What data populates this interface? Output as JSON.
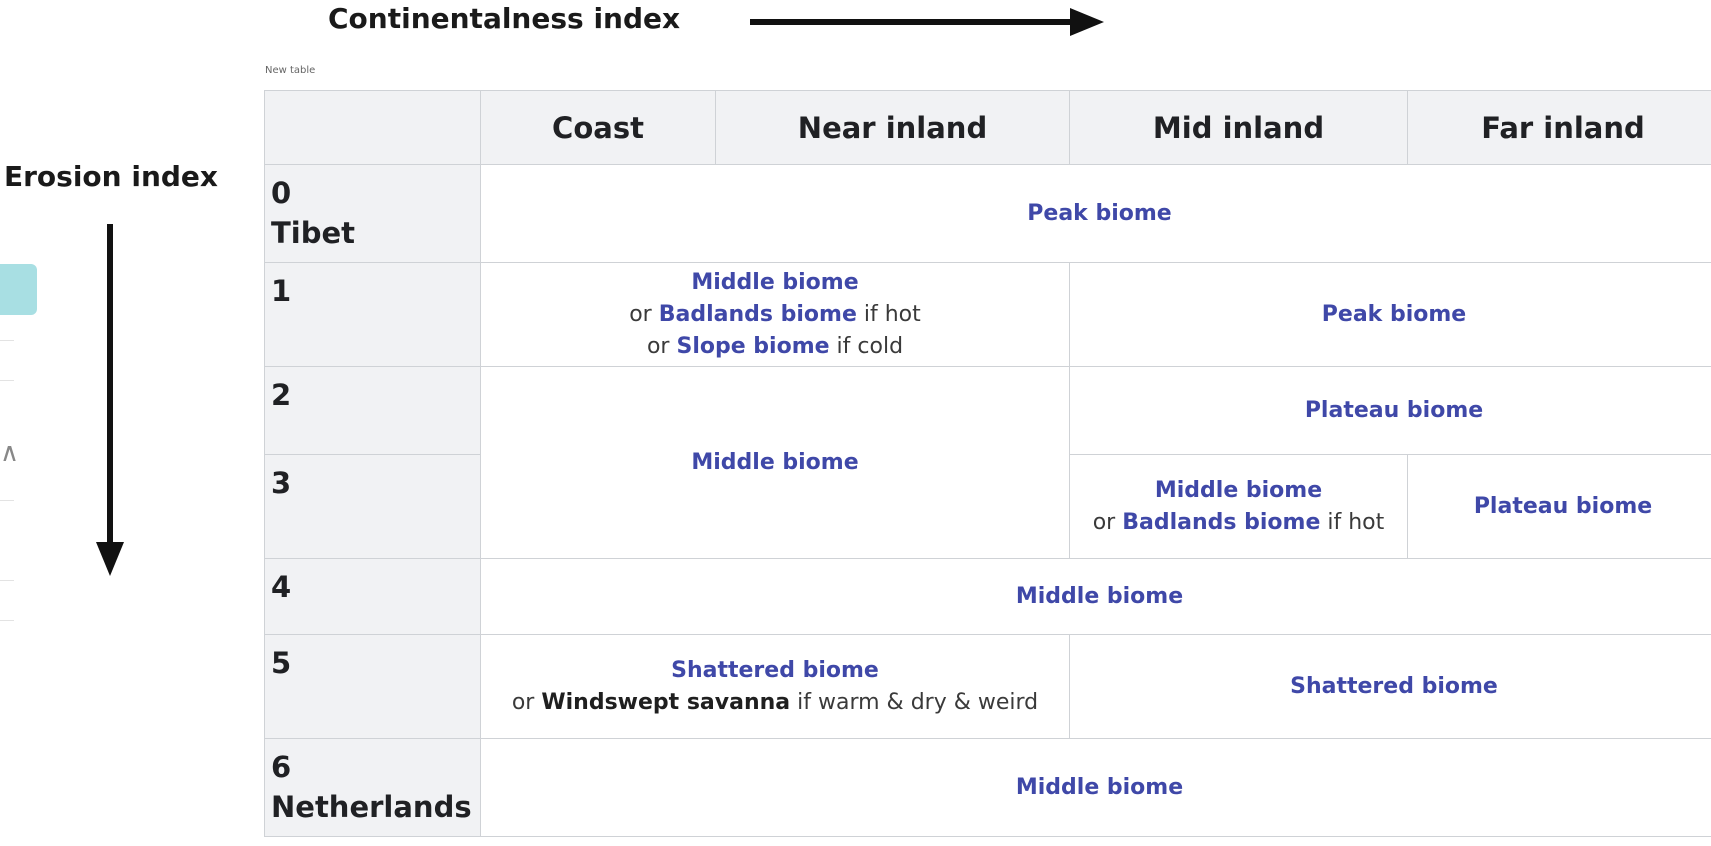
{
  "axes": {
    "continentalness_label": "Continentalness index",
    "erosion_label": "Erosion index"
  },
  "table": {
    "caption": "New table",
    "columns": [
      "Coast",
      "Near inland",
      "Mid inland",
      "Far inland"
    ],
    "rows": [
      {
        "index": "0",
        "name": "Tibet"
      },
      {
        "index": "1",
        "name": ""
      },
      {
        "index": "2",
        "name": ""
      },
      {
        "index": "3",
        "name": ""
      },
      {
        "index": "4",
        "name": ""
      },
      {
        "index": "5",
        "name": ""
      },
      {
        "index": "6",
        "name": "Netherlands"
      }
    ],
    "cells": {
      "r0_all": "Peak biome",
      "r1_coast_near": {
        "line1": "Middle biome",
        "or": "or",
        "badlands": "Badlands biome",
        "if_hot": "if hot",
        "slope": "Slope biome",
        "if_cold": "if cold"
      },
      "r1_mid_far": "Peak biome",
      "r23_coast_near": "Middle biome",
      "r2_mid_far": "Plateau biome",
      "r3_mid": {
        "line1": "Middle biome",
        "or": "or",
        "badlands": "Badlands biome",
        "if_hot": "if hot"
      },
      "r3_far": "Plateau biome",
      "r4_all": "Middle biome",
      "r5_coast_near": {
        "line1": "Shattered biome",
        "or": "or",
        "savanna": "Windswept savanna",
        "condition": "if warm & dry & weird"
      },
      "r5_mid_far": "Shattered biome",
      "r6_all": "Middle biome"
    }
  },
  "colors": {
    "biome_link": "#3f48a8",
    "header_bg": "#f1f2f4",
    "border": "#cfd2d6",
    "side_widget": "#a8dfe3"
  }
}
